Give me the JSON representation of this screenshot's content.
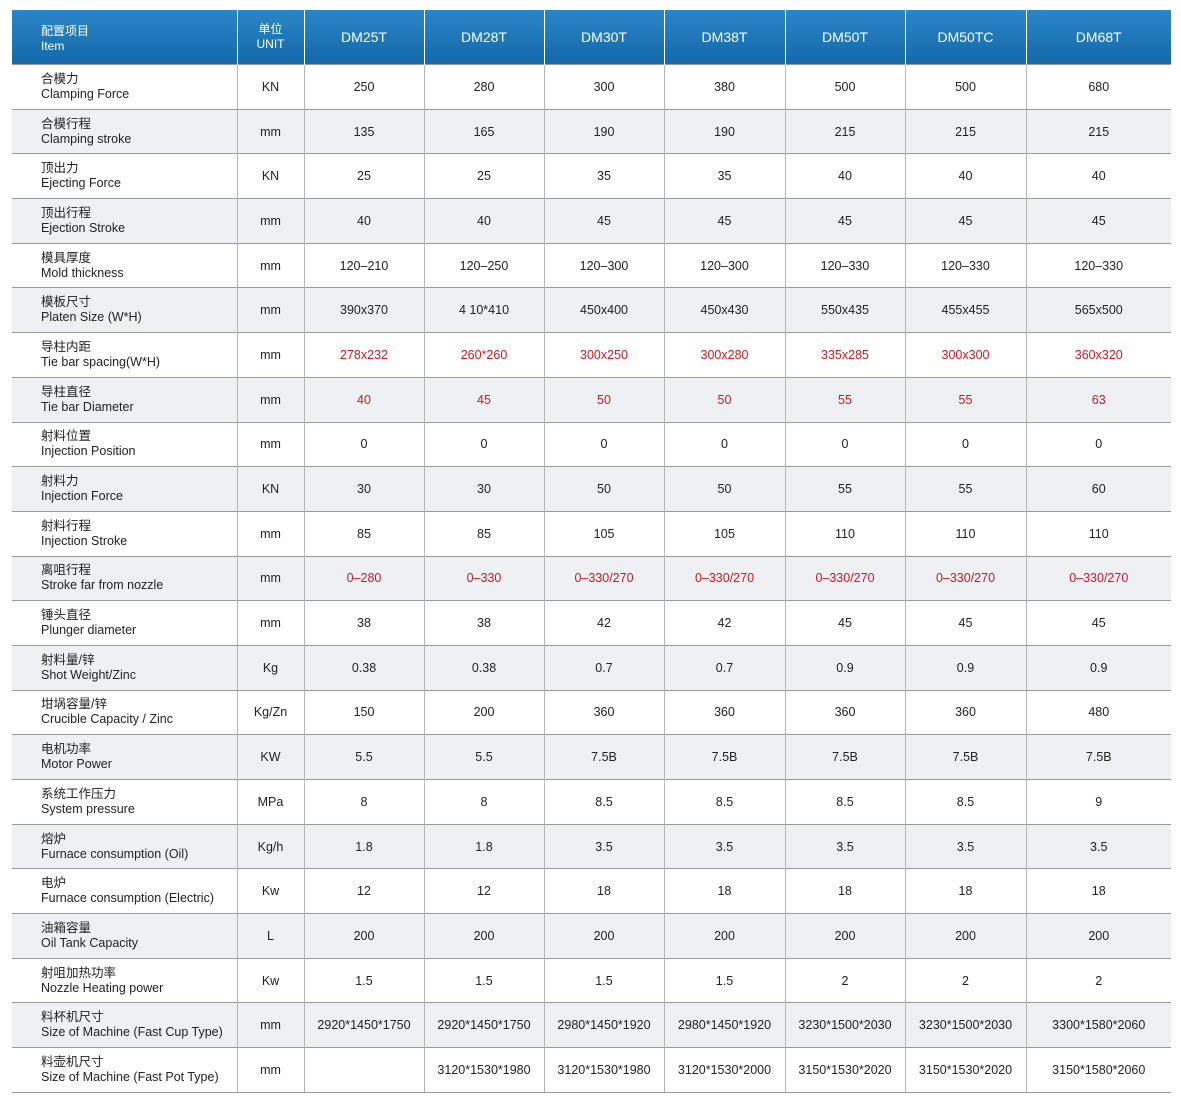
{
  "header": {
    "item_cn": "配置项目",
    "item_en": "Item",
    "unit_cn": "单位",
    "unit_en": "UNIT",
    "models": [
      "DM25T",
      "DM28T",
      "DM30T",
      "DM38T",
      "DM50T",
      "DM50TC",
      "DM68T"
    ]
  },
  "rows": [
    {
      "cn": "合模力",
      "en": "Clamping Force",
      "unit": "KN",
      "values": [
        "250",
        "280",
        "300",
        "380",
        "500",
        "500",
        "680"
      ]
    },
    {
      "cn": "合模行程",
      "en": "Clamping stroke",
      "unit": "mm",
      "values": [
        "135",
        "165",
        "190",
        "190",
        "215",
        "215",
        "215"
      ]
    },
    {
      "cn": "顶出力",
      "en": "Ejecting Force",
      "unit": "KN",
      "values": [
        "25",
        "25",
        "35",
        "35",
        "40",
        "40",
        "40"
      ]
    },
    {
      "cn": "顶出行程",
      "en": "Ejection Stroke",
      "unit": "mm",
      "values": [
        "40",
        "40",
        "45",
        "45",
        "45",
        "45",
        "45"
      ]
    },
    {
      "cn": "模具厚度",
      "en": "Mold thickness",
      "unit": "mm",
      "values": [
        "120–210",
        "120–250",
        "120–300",
        "120–300",
        "120–330",
        "120–330",
        "120–330"
      ]
    },
    {
      "cn": "模板尺寸",
      "en": "Platen Size (W*H)",
      "unit": "mm",
      "values": [
        "390x370",
        "4  10*410",
        "450x400",
        "450x430",
        "550x435",
        "455x455",
        "565x500"
      ]
    },
    {
      "cn": "导柱内距",
      "en": "Tie bar spacing(W*H)",
      "unit": "mm",
      "values": [
        "278x232",
        "260*260",
        "300x250",
        "300x280",
        "335x285",
        "300x300",
        "360x320"
      ],
      "highlight": true
    },
    {
      "cn": "导柱直径",
      "en": "Tie bar Diameter",
      "unit": "mm",
      "values": [
        "40",
        "45",
        "50",
        "50",
        "55",
        "55",
        "63"
      ],
      "highlight": true
    },
    {
      "cn": "射料位置",
      "en": "Injection Position",
      "unit": "mm",
      "values": [
        "0",
        "0",
        "0",
        "0",
        "0",
        "0",
        "0"
      ]
    },
    {
      "cn": "射料力",
      "en": "Injection Force",
      "unit": "KN",
      "values": [
        "30",
        "30",
        "50",
        "50",
        "55",
        "55",
        "60"
      ]
    },
    {
      "cn": "射料行程",
      "en": "Injection Stroke",
      "unit": "mm",
      "values": [
        "85",
        "85",
        "105",
        "105",
        "110",
        "110",
        "110"
      ]
    },
    {
      "cn": "离咀行程",
      "en": "Stroke far from nozzle",
      "unit": "mm",
      "values": [
        "0–280",
        "0–330",
        "0–330/270",
        "0–330/270",
        "0–330/270",
        "0–330/270",
        "0–330/270"
      ],
      "highlight": true
    },
    {
      "cn": "锤头直径",
      "en": "Plunger diameter",
      "unit": "mm",
      "values": [
        "38",
        "38",
        "42",
        "42",
        "45",
        "45",
        "45"
      ]
    },
    {
      "cn": "射料量/锌",
      "en": "Shot Weight/Zinc",
      "unit": "Kg",
      "values": [
        "0.38",
        "0.38",
        "0.7",
        "0.7",
        "0.9",
        "0.9",
        "0.9"
      ]
    },
    {
      "cn": "坩埚容量/锌",
      "en": "Crucible Capacity / Zinc",
      "unit": "Kg/Zn",
      "values": [
        "150",
        "200",
        "360",
        "360",
        "360",
        "360",
        "480"
      ]
    },
    {
      "cn": "电机功率",
      "en": "Motor Power",
      "unit": "KW",
      "values": [
        "5.5",
        "5.5",
        "7.5B",
        "7.5B",
        "7.5B",
        "7.5B",
        "7.5B"
      ]
    },
    {
      "cn": "系统工作压力",
      "en": "System pressure",
      "unit": "MPa",
      "values": [
        "8",
        "8",
        "8.5",
        "8.5",
        "8.5",
        "8.5",
        "9"
      ]
    },
    {
      "cn": "熔炉",
      "en": "Furnace consumption (Oil)",
      "unit": "Kg/h",
      "values": [
        "1.8",
        "1.8",
        "3.5",
        "3.5",
        "3.5",
        "3.5",
        "3.5"
      ]
    },
    {
      "cn": "电炉",
      "en": "Furnace consumption (Electric)",
      "unit": "Kw",
      "values": [
        "12",
        "12",
        "18",
        "18",
        "18",
        "18",
        "18"
      ]
    },
    {
      "cn": "油箱容量",
      "en": "Oil Tank Capacity",
      "unit": "L",
      "values": [
        "200",
        "200",
        "200",
        "200",
        "200",
        "200",
        "200"
      ]
    },
    {
      "cn": "射咀加热功率",
      "en": "Nozzle Heating power",
      "unit": "Kw",
      "values": [
        "1.5",
        "1.5",
        "1.5",
        "1.5",
        "2",
        "2",
        "2"
      ]
    },
    {
      "cn": "料杯机尺寸",
      "en": "Size of Machine (Fast Cup Type)",
      "unit": "mm",
      "values": [
        "2920*1450*1750",
        "2920*1450*1750",
        "2980*1450*1920",
        "2980*1450*1920",
        "3230*1500*2030",
        "3230*1500*2030",
        "3300*1580*2060"
      ]
    },
    {
      "cn": "料壶机尺寸",
      "en": "Size of Machine (Fast Pot Type)",
      "unit": "mm",
      "values": [
        null,
        "3120*1530*1980",
        "3120*1530*1980",
        "3120*1530*2000",
        "3150*1530*2020",
        "3150*1530*2020",
        "3150*1580*2060"
      ]
    }
  ]
}
